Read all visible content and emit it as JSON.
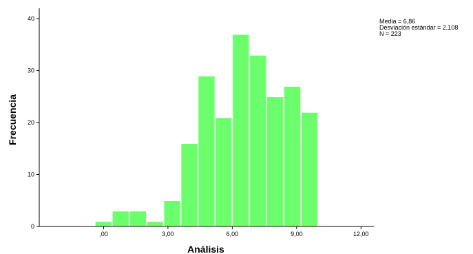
{
  "chart_data": {
    "type": "bar",
    "subtype": "histogram",
    "bin_width": 0.8,
    "bins": [
      {
        "start": -0.4,
        "end": 0.4,
        "count": 1
      },
      {
        "start": 0.4,
        "end": 1.2,
        "count": 3
      },
      {
        "start": 1.2,
        "end": 2.0,
        "count": 3
      },
      {
        "start": 2.0,
        "end": 2.8,
        "count": 1
      },
      {
        "start": 2.8,
        "end": 3.6,
        "count": 5
      },
      {
        "start": 3.6,
        "end": 4.4,
        "count": 16
      },
      {
        "start": 4.4,
        "end": 5.2,
        "count": 29
      },
      {
        "start": 5.2,
        "end": 6.0,
        "count": 21
      },
      {
        "start": 6.0,
        "end": 6.8,
        "count": 37
      },
      {
        "start": 6.8,
        "end": 7.6,
        "count": 33
      },
      {
        "start": 7.6,
        "end": 8.4,
        "count": 25
      },
      {
        "start": 8.4,
        "end": 9.2,
        "count": 27
      },
      {
        "start": 9.2,
        "end": 10.0,
        "count": 22
      }
    ],
    "xlabel": "Análisis",
    "ylabel": "Frecuencia",
    "xlim": [
      -3.0,
      12.6
    ],
    "ylim": [
      0,
      42
    ],
    "x_ticks": [
      0,
      3,
      6,
      9,
      12
    ],
    "x_tick_labels": [
      ",00",
      "3,00",
      "6,00",
      "9,00",
      "12,00"
    ],
    "y_ticks": [
      0,
      10,
      20,
      30,
      40
    ],
    "y_tick_labels": [
      "0",
      "10",
      "20",
      "30",
      "40"
    ],
    "grid": false,
    "bar_color": "#6cff6c",
    "stats": {
      "mean_label": "Media = 6,86",
      "sd_label": "Desviación estándar = 2,108",
      "n_label": "N = 223"
    }
  }
}
